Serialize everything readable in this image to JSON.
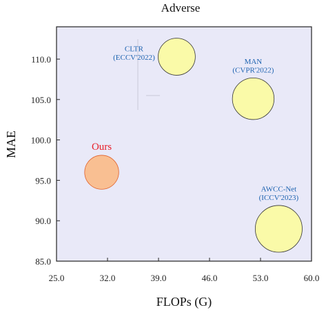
{
  "chart_data": {
    "type": "scatter",
    "title": "Adverse",
    "xlabel": "FLOPs (G)",
    "ylabel": "MAE",
    "xlim": [
      25,
      60
    ],
    "ylim": [
      85,
      114
    ],
    "xticks": [
      25,
      32,
      39,
      46,
      53,
      60
    ],
    "xtick_labels": [
      "25.0",
      "32.0",
      "39.0",
      "46.0",
      "53.0",
      "60.0"
    ],
    "yticks": [
      85,
      90,
      95,
      100,
      105,
      110
    ],
    "ytick_labels": [
      "85.0",
      "90.0",
      "95.0",
      "100.0",
      "105.0",
      "110.0"
    ],
    "grid": false,
    "points": [
      {
        "name": "Ours",
        "label_lines": [
          "Ours"
        ],
        "x": 31.2,
        "y": 96.0,
        "size": 0.38,
        "color": "#f9bf92",
        "edge": "#e0602a",
        "label_color": "#e8202a"
      },
      {
        "name": "CLTR",
        "label_lines": [
          "CLTR",
          "(ECCV'2022)"
        ],
        "x": 41.5,
        "y": 110.3,
        "size": 0.45,
        "color": "#fafaa8",
        "edge": "#333333",
        "label_color": "#1e63b0"
      },
      {
        "name": "MAN",
        "label_lines": [
          "MAN",
          "(CVPR'2022)"
        ],
        "x": 52.0,
        "y": 105.1,
        "size": 0.57,
        "color": "#fafaa8",
        "edge": "#333333",
        "label_color": "#1e63b0"
      },
      {
        "name": "AWCC-Net",
        "label_lines": [
          "AWCC-Net",
          "(ICCV'2023)"
        ],
        "x": 55.5,
        "y": 89.0,
        "size": 0.72,
        "color": "#fafaa8",
        "edge": "#333333",
        "label_color": "#1e63b0"
      }
    ]
  },
  "colors": {
    "plot_background": "#e9e9f8",
    "tick_color": "#222222"
  }
}
